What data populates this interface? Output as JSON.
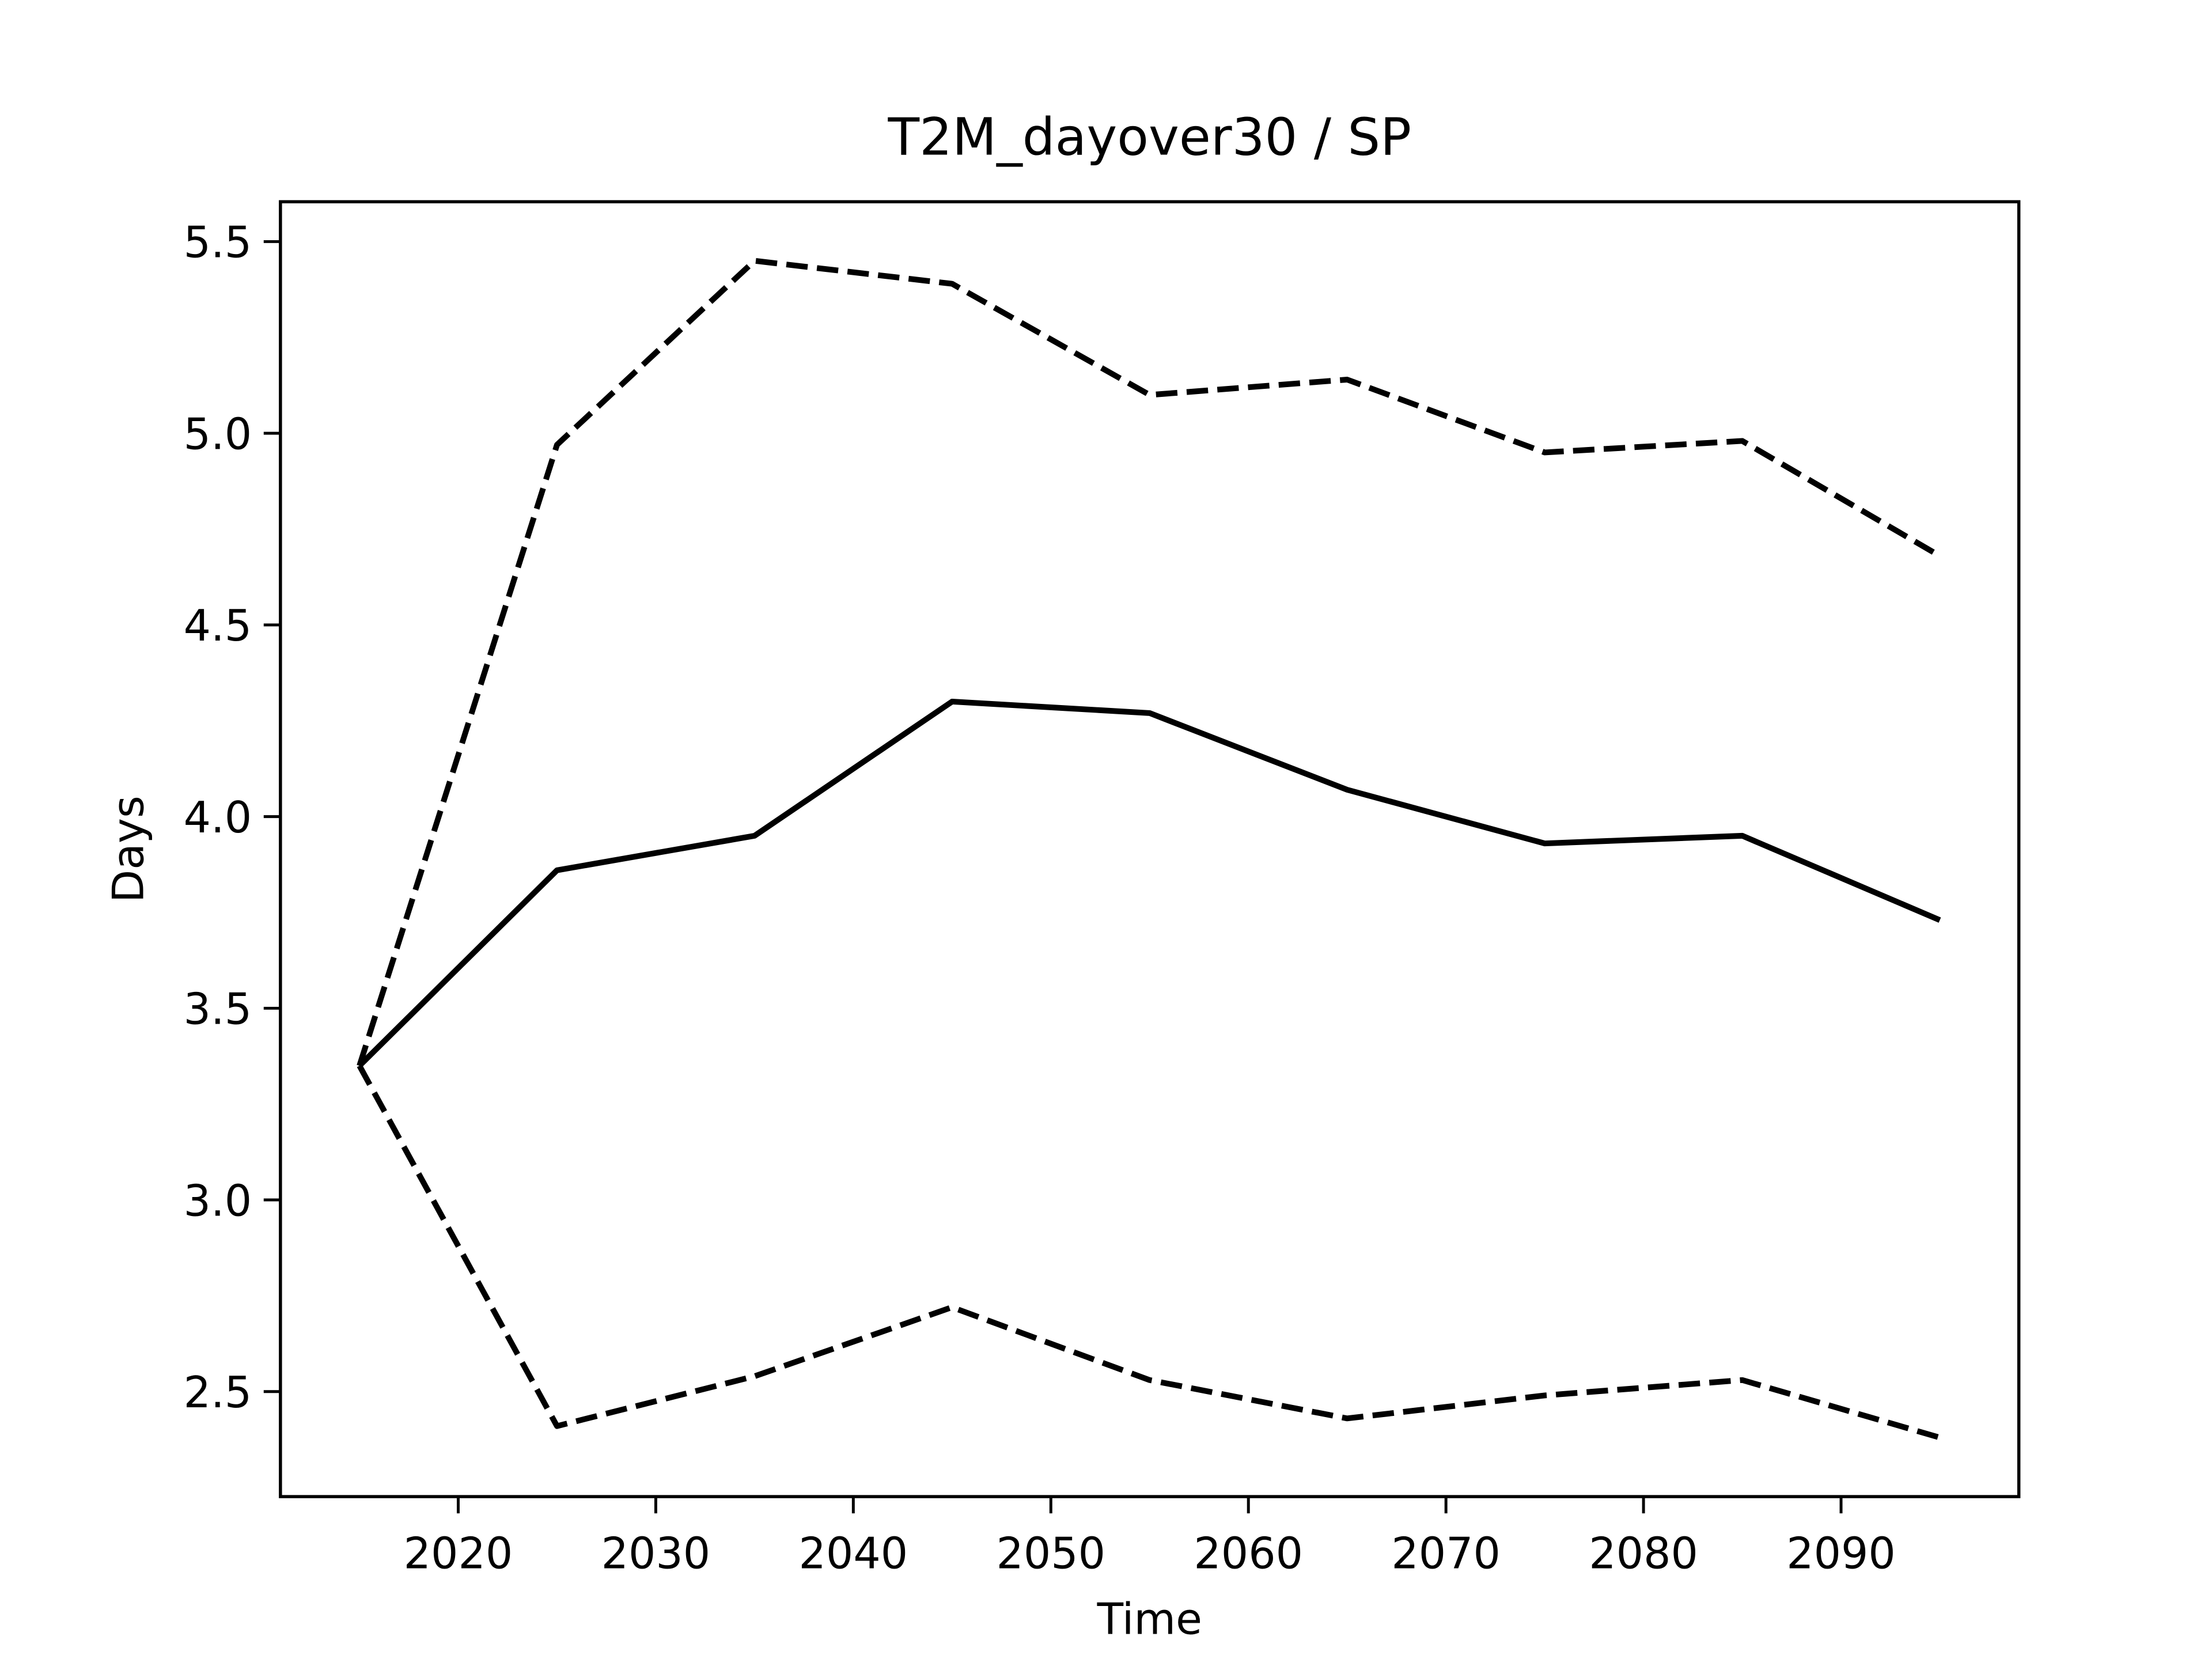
{
  "chart_data": {
    "type": "line",
    "title": "T2M_dayover30 / SP",
    "xlabel": "Time",
    "ylabel": "Days",
    "x": [
      2015,
      2025,
      2035,
      2045,
      2055,
      2065,
      2075,
      2085,
      2095
    ],
    "series": [
      {
        "color": "#000000",
        "linestyle": "solid",
        "values": [
          3.35,
          3.86,
          3.95,
          4.3,
          4.27,
          4.07,
          3.93,
          3.95,
          3.73
        ]
      },
      {
        "color": "#000000",
        "linestyle": "dashed",
        "values": [
          3.35,
          4.97,
          5.45,
          5.39,
          5.1,
          5.14,
          4.95,
          4.98,
          4.68
        ]
      },
      {
        "color": "#000000",
        "linestyle": "dashed",
        "values": [
          3.35,
          2.41,
          2.54,
          2.72,
          2.53,
          2.43,
          2.49,
          2.53,
          2.38
        ]
      }
    ],
    "xlim": [
      2011,
      2099
    ],
    "xticks": [
      2020,
      2030,
      2040,
      2050,
      2060,
      2070,
      2080,
      2090
    ],
    "ylim": [
      2.226,
      5.604
    ],
    "yticks": [
      2.5,
      {
        "value": 3,
        "label": "3.0"
      },
      3.5,
      {
        "value": 4,
        "label": "4.0"
      },
      4.5,
      {
        "value": 5,
        "label": "5.0"
      },
      5.5
    ]
  }
}
